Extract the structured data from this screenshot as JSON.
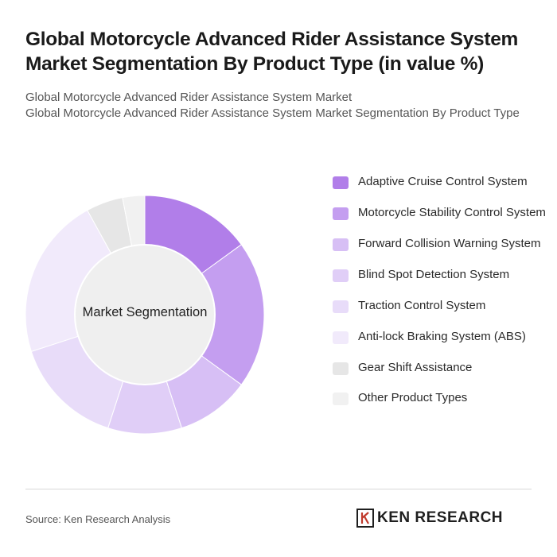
{
  "title": "Global Motorcycle Advanced Rider Assistance System Market Segmentation By Product Type (in value %)",
  "subtitle_line1": "Global Motorcycle Advanced Rider Assistance System Market",
  "subtitle_line2": "Global Motorcycle Advanced Rider Assistance System Market Segmentation By Product Type",
  "source": "Source: Ken Research Analysis",
  "logo_text": "KEN RESEARCH",
  "chart_data": {
    "type": "pie",
    "variant": "donut",
    "center_label": "Market Segmentation",
    "legend_position": "right",
    "categories": [
      "Adaptive Cruise Control System",
      "Motorcycle Stability Control System",
      "Forward Collision Warning System",
      "Blind Spot Detection System",
      "Traction Control System",
      "Anti-lock Braking System (ABS)",
      "Gear Shift Assistance",
      "Other Product Types"
    ],
    "values": [
      15,
      20,
      10,
      10,
      15,
      22,
      5,
      3
    ],
    "colors": [
      "#b17ee9",
      "#c49ef0",
      "#d7bff5",
      "#e0cef7",
      "#e8dcf9",
      "#f1eafb",
      "#e6e6e6",
      "#f1f1f1"
    ]
  }
}
